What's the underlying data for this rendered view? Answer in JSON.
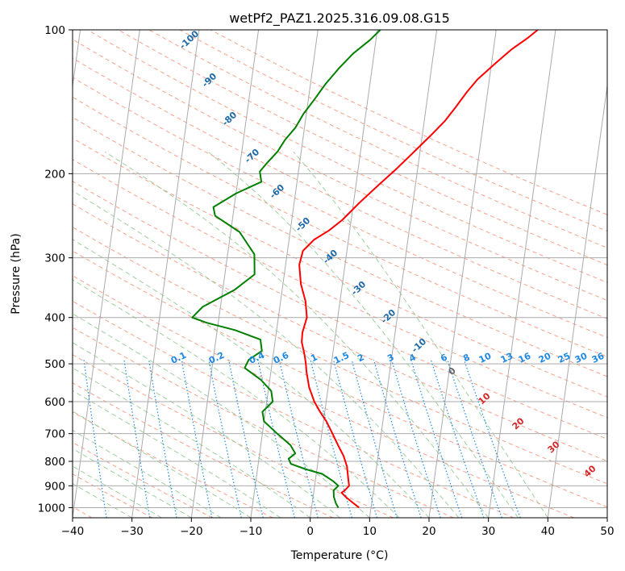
{
  "chart_data": {
    "type": "line",
    "title": "wetPf2_PAZ1.2025.316.09.08.G15",
    "xlabel": "Temperature (°C)",
    "ylabel": "Pressure (hPa)",
    "xlim": [
      -40,
      50
    ],
    "ylim": [
      1050,
      100
    ],
    "y_scale": "log",
    "grid": true,
    "x_ticks": [
      "−40",
      "−30",
      "−20",
      "−10",
      "0",
      "10",
      "20",
      "30",
      "40",
      "50"
    ],
    "y_ticks": [
      "100",
      "200",
      "300",
      "400",
      "500",
      "600",
      "700",
      "800",
      "900",
      "1000"
    ],
    "series": [
      {
        "color": "#ff0000",
        "points": [
          [
            8.0,
            1000
          ],
          [
            7.0,
            980
          ],
          [
            5.5,
            950
          ],
          [
            4.7,
            930
          ],
          [
            5.2,
            920
          ],
          [
            5.8,
            900
          ],
          [
            5.5,
            870
          ],
          [
            5.3,
            850
          ],
          [
            5.0,
            820
          ],
          [
            4.2,
            780
          ],
          [
            3.0,
            740
          ],
          [
            1.8,
            700
          ],
          [
            0.5,
            660
          ],
          [
            -0.8,
            630
          ],
          [
            -2.0,
            600
          ],
          [
            -3.2,
            560
          ],
          [
            -4.0,
            520
          ],
          [
            -4.3,
            500
          ],
          [
            -4.7,
            480
          ],
          [
            -5.5,
            450
          ],
          [
            -5.6,
            430
          ],
          [
            -5.2,
            400
          ],
          [
            -5.8,
            370
          ],
          [
            -7.0,
            340
          ],
          [
            -7.7,
            310
          ],
          [
            -7.4,
            290
          ],
          [
            -5.8,
            275
          ],
          [
            -3.5,
            263
          ],
          [
            -1.5,
            250
          ],
          [
            1.0,
            230
          ],
          [
            4.0,
            210
          ],
          [
            6.5,
            195
          ],
          [
            9.0,
            180
          ],
          [
            11.5,
            166
          ],
          [
            13.5,
            155
          ],
          [
            15.0,
            145
          ],
          [
            16.5,
            135
          ],
          [
            18.0,
            127
          ],
          [
            20.5,
            118
          ],
          [
            23.0,
            110
          ],
          [
            25.5,
            104
          ],
          [
            27.0,
            100
          ]
        ]
      },
      {
        "color": "#008000",
        "points": [
          [
            4.5,
            1000
          ],
          [
            4.0,
            980
          ],
          [
            3.5,
            950
          ],
          [
            3.3,
            920
          ],
          [
            4.0,
            900
          ],
          [
            3.0,
            880
          ],
          [
            1.0,
            850
          ],
          [
            -2.0,
            830
          ],
          [
            -4.5,
            810
          ],
          [
            -5.0,
            790
          ],
          [
            -4.0,
            770
          ],
          [
            -5.0,
            740
          ],
          [
            -7.5,
            700
          ],
          [
            -10.0,
            660
          ],
          [
            -10.5,
            630
          ],
          [
            -9.0,
            600
          ],
          [
            -9.5,
            570
          ],
          [
            -11.5,
            540
          ],
          [
            -14.5,
            510
          ],
          [
            -14.0,
            490
          ],
          [
            -12.0,
            470
          ],
          [
            -12.5,
            445
          ],
          [
            -17.0,
            425
          ],
          [
            -22.0,
            410
          ],
          [
            -24.5,
            400
          ],
          [
            -23.0,
            380
          ],
          [
            -18.0,
            350
          ],
          [
            -15.0,
            325
          ],
          [
            -15.5,
            295
          ],
          [
            -18.5,
            265
          ],
          [
            -23.0,
            245
          ],
          [
            -23.5,
            235
          ],
          [
            -20.0,
            220
          ],
          [
            -16.0,
            208
          ],
          [
            -16.5,
            198
          ],
          [
            -15.5,
            190
          ],
          [
            -14.0,
            180
          ],
          [
            -13.0,
            170
          ],
          [
            -11.5,
            160
          ],
          [
            -10.5,
            150
          ],
          [
            -9.0,
            140
          ],
          [
            -7.5,
            130
          ],
          [
            -5.5,
            120
          ],
          [
            -3.5,
            112
          ],
          [
            -1.0,
            105
          ],
          [
            0.5,
            100
          ]
        ]
      }
    ],
    "dry_adiabat_labels": [
      "-100",
      "-90",
      "-80",
      "-70",
      "-60",
      "-50",
      "-40",
      "-30",
      "-20",
      "-10",
      "0",
      "10",
      "20",
      "30",
      "40"
    ],
    "mixing_ratio_labels": [
      "0.1",
      "0.2",
      "0.4",
      "0.6",
      "1",
      "1.5",
      "2",
      "3",
      "4",
      "6",
      "8",
      "10",
      "13",
      "16",
      "20",
      "25",
      "30",
      "36"
    ],
    "mixing_ratio_values": [
      0.1,
      0.2,
      0.4,
      0.6,
      1,
      1.5,
      2,
      3,
      4,
      6,
      8,
      10,
      13,
      16,
      20,
      25,
      30,
      36
    ],
    "colors": {
      "temperature": "#ff0000",
      "dewpoint": "#008000",
      "isotherm": "#aaaaaa",
      "isobar": "#aaaaaa",
      "dry_adiabat": "#f7a08a",
      "moist_adiabat": "#9fcf9f",
      "mixing_ratio": "#1e88e5",
      "adiabat_label_cold": "#1f6aa8",
      "adiabat_label_warm": "#d62728",
      "adiabat_label_zero": "#666666"
    }
  }
}
